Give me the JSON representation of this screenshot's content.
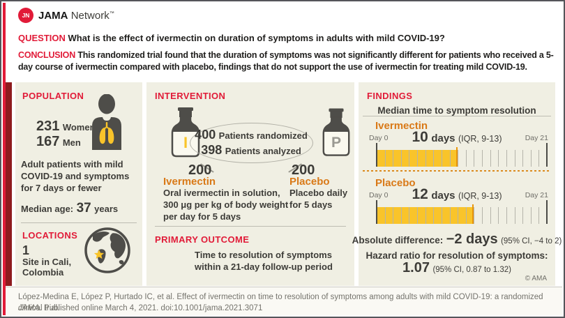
{
  "brand": {
    "monogram": "JN",
    "name_bold": "JAMA",
    "name_regular": "Network",
    "trademark": "™"
  },
  "question": {
    "label": "QUESTION",
    "text": "What is the effect of ivermectin on duration of symptoms in adults with mild COVID-19?"
  },
  "conclusion": {
    "label": "CONCLUSION",
    "text": "This randomized trial found that the duration of symptoms was not significantly different for patients who received a 5-day course of ivermectin compared with placebo, findings that do not support the use of ivermectin for treating mild COVID-19."
  },
  "population": {
    "label": "POPULATION",
    "women_value": "231",
    "women_label": "Women",
    "men_value": "167",
    "men_label": "Men",
    "description": "Adult patients with mild COVID-19 and symptoms for 7 days or fewer",
    "median_age_label": "Median age:",
    "median_age_value": "37",
    "median_age_unit": "years"
  },
  "locations": {
    "label": "LOCATIONS",
    "count": "1",
    "line1": "Site in Cali,",
    "line2": "Colombia"
  },
  "intervention": {
    "label": "INTERVENTION",
    "bottle_i_letter": "I",
    "bottle_p_letter": "P",
    "randomized_value": "400",
    "randomized_label": "Patients randomized",
    "analyzed_value": "398",
    "analyzed_label": "Patients analyzed",
    "arm1": {
      "n": "200",
      "name": "Ivermectin",
      "desc": "Oral ivermectin in solution, 300 μg per kg of body weight per day for 5 days"
    },
    "arm2": {
      "n": "200",
      "name": "Placebo",
      "desc": "Placebo daily for 5 days"
    }
  },
  "primary_outcome": {
    "label": "PRIMARY OUTCOME",
    "text": "Time to resolution of symptoms within a 21-day follow-up period"
  },
  "findings": {
    "label": "FINDINGS",
    "subtitle": "Median time to symptom resolution",
    "timelines": [
      {
        "name": "Ivermectin",
        "value": "10",
        "unit": "days",
        "iqr": "(IQR, 9-13)",
        "day_start": "Day 0",
        "day_end": "Day 21",
        "filled_days": 10,
        "total_days": 21
      },
      {
        "name": "Placebo",
        "value": "12",
        "unit": "days",
        "iqr": "(IQR, 9-13)",
        "day_start": "Day 0",
        "day_end": "Day 21",
        "filled_days": 12,
        "total_days": 21
      }
    ],
    "absolute_difference": {
      "label": "Absolute difference:",
      "value": "−2 days",
      "ci": "(95% CI, −4 to 2)"
    },
    "hazard_ratio": {
      "label": "Hazard ratio for resolution of symptoms:",
      "value": "1.07",
      "ci": "(95% CI, 0.87 to 1.32)"
    },
    "copyright": "© AMA"
  },
  "citation": {
    "line1": "López-Medina E, López P, Hurtado IC, et al. Effect of ivermectin on time to resolution of symptoms among adults with mild COVID-19: a randomized clinical trial.",
    "journal": "JAMA",
    "line2_rest": ". Published online March 4, 2021. doi:10.1001/jama.2021.3071"
  },
  "colors": {
    "brand_red": "#e11b38",
    "maroon_bar": "#8e1b1e",
    "panel_beige": "#f0efe3",
    "accent_orange": "#d97917",
    "bar_yellow": "#f9c42a",
    "icon_gray": "#4e4d49"
  }
}
